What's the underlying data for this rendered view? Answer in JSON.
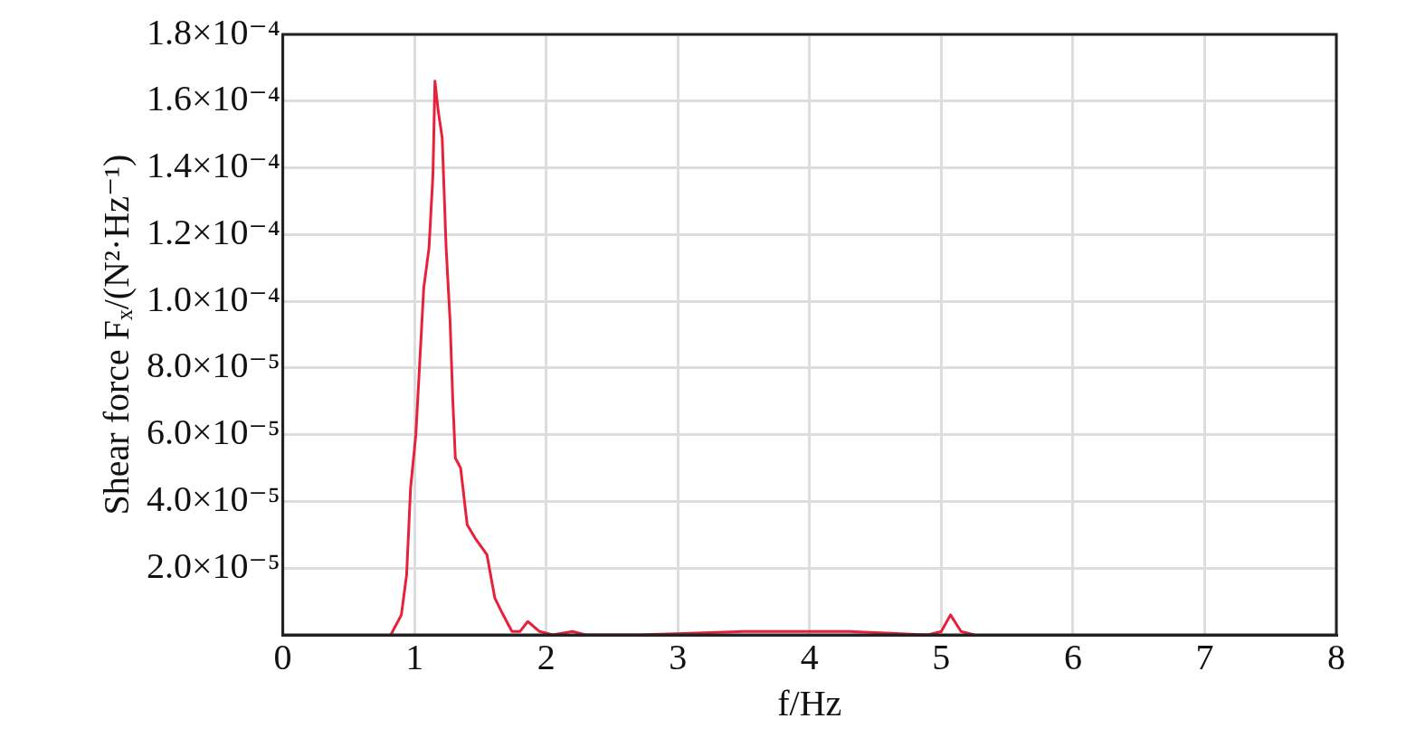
{
  "chart_data": {
    "type": "line",
    "xlabel": "f/Hz",
    "ylabel": "Shear force Fₓ/(N²·Hz⁻¹)",
    "xlim": [
      0,
      8
    ],
    "xticks": [
      0,
      1,
      2,
      3,
      4,
      5,
      6,
      7,
      8
    ],
    "ylim": [
      0,
      0.00018
    ],
    "yticks": [
      {
        "value": 2e-05,
        "label": "2.0×10⁻⁵"
      },
      {
        "value": 4e-05,
        "label": "4.0×10⁻⁵"
      },
      {
        "value": 6e-05,
        "label": "6.0×10⁻⁵"
      },
      {
        "value": 8e-05,
        "label": "8.0×10⁻⁵"
      },
      {
        "value": 0.0001,
        "label": "1.0×10⁻⁴"
      },
      {
        "value": 0.00012,
        "label": "1.2×10⁻⁴"
      },
      {
        "value": 0.00014,
        "label": "1.4×10⁻⁴"
      },
      {
        "value": 0.00016,
        "label": "1.6×10⁻⁴"
      },
      {
        "value": 0.00018,
        "label": "1.8×10⁻⁴"
      }
    ],
    "grid": true,
    "legend": false,
    "marker": "none",
    "line_style": "solid",
    "series": [
      {
        "color": "#e8213a",
        "x": [
          0.82,
          0.9,
          0.94,
          0.97,
          1.01,
          1.04,
          1.07,
          1.11,
          1.14,
          1.155,
          1.18,
          1.21,
          1.24,
          1.27,
          1.29,
          1.31,
          1.35,
          1.4,
          1.46,
          1.55,
          1.61,
          1.66,
          1.74,
          1.8,
          1.86,
          1.95,
          2.05,
          2.2,
          2.3,
          2.7,
          3.5,
          4.3,
          4.9,
          5.0,
          5.07,
          5.15,
          5.25
        ],
        "values": [
          0,
          6e-06,
          1.8e-05,
          4.4e-05,
          6e-05,
          8.2e-05,
          0.000104,
          0.000116,
          0.000138,
          0.000166,
          0.000157,
          0.000149,
          0.000116,
          9.4e-05,
          7.1e-05,
          5.3e-05,
          5e-05,
          3.3e-05,
          2.9e-05,
          2.4e-05,
          1.1e-05,
          7e-06,
          1e-06,
          1e-06,
          4e-06,
          1e-06,
          0,
          1e-06,
          0,
          0,
          1e-06,
          1e-06,
          0,
          1e-06,
          6e-06,
          1e-06,
          0
        ]
      }
    ]
  }
}
